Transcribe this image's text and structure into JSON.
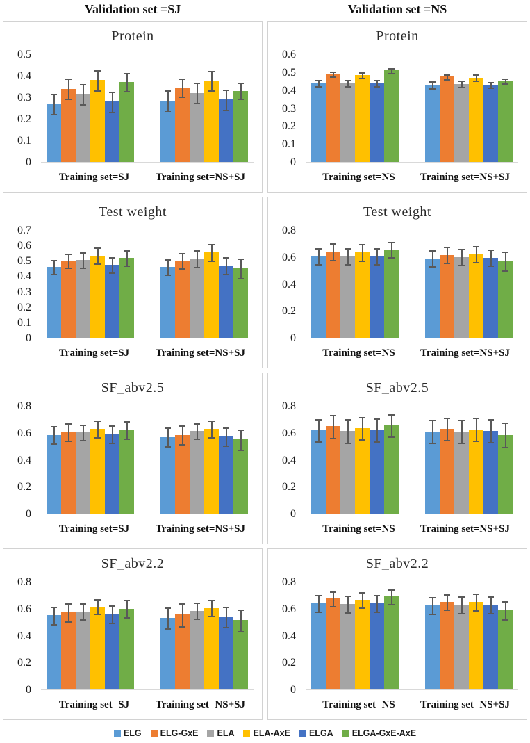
{
  "header": {
    "columns": [
      "Validation set =SJ",
      "Validation set =NS"
    ]
  },
  "legend": {
    "items": [
      {
        "label": "ELG",
        "color": "#5B9BD5"
      },
      {
        "label": "ELG-GxE",
        "color": "#ED7D31"
      },
      {
        "label": "ELA",
        "color": "#A5A5A5"
      },
      {
        "label": "ELA-AxE",
        "color": "#FFC000"
      },
      {
        "label": "ELGA",
        "color": "#4472C4"
      },
      {
        "label": "ELGA-GxE-AxE",
        "color": "#70AD47"
      }
    ]
  },
  "error_bar_color": "#595959",
  "chart_data": [
    {
      "type": "bar",
      "title": "Protein",
      "validation_set": "SJ",
      "ymax": 0.5,
      "yticks": [
        0,
        0.1,
        0.2,
        0.3,
        0.4,
        0.5
      ],
      "grid": false,
      "series_names": [
        "ELG",
        "ELG-GxE",
        "ELA",
        "ELA-AxE",
        "ELGA",
        "ELGA-GxE-AxE"
      ],
      "groups": [
        {
          "label": "Training set=SJ",
          "values": [
            0.27,
            0.34,
            0.315,
            0.38,
            0.28,
            0.37
          ],
          "errors": [
            0.05,
            0.05,
            0.05,
            0.05,
            0.05,
            0.045
          ]
        },
        {
          "label": "Training set=NS+SJ",
          "values": [
            0.285,
            0.345,
            0.32,
            0.378,
            0.29,
            0.33
          ],
          "errors": [
            0.05,
            0.045,
            0.05,
            0.048,
            0.05,
            0.04
          ]
        }
      ]
    },
    {
      "type": "bar",
      "title": "Protein",
      "validation_set": "NS",
      "ymax": 0.6,
      "yticks": [
        0,
        0.1,
        0.2,
        0.3,
        0.4,
        0.5,
        0.6
      ],
      "grid": false,
      "series_names": [
        "ELG",
        "ELG-GxE",
        "ELA",
        "ELA-AxE",
        "ELGA",
        "ELGA-GxE-AxE"
      ],
      "groups": [
        {
          "label": "Training set=NS",
          "values": [
            0.44,
            0.49,
            0.44,
            0.485,
            0.44,
            0.51
          ],
          "errors": [
            0.022,
            0.018,
            0.022,
            0.02,
            0.022,
            0.018
          ]
        },
        {
          "label": "Training set=NS+SJ",
          "values": [
            0.43,
            0.475,
            0.435,
            0.47,
            0.43,
            0.45
          ],
          "errors": [
            0.022,
            0.018,
            0.022,
            0.02,
            0.02,
            0.018
          ]
        }
      ]
    },
    {
      "type": "bar",
      "title": "Test weight",
      "validation_set": "SJ",
      "ymax": 0.7,
      "yticks": [
        0,
        0.1,
        0.2,
        0.3,
        0.4,
        0.5,
        0.6,
        0.7
      ],
      "grid": false,
      "series_names": [
        "ELG",
        "ELG-GxE",
        "ELA",
        "ELA-AxE",
        "ELGA",
        "ELGA-GxE-AxE"
      ],
      "groups": [
        {
          "label": "Training set=SJ",
          "values": [
            0.46,
            0.5,
            0.505,
            0.535,
            0.475,
            0.52
          ],
          "errors": [
            0.05,
            0.05,
            0.055,
            0.055,
            0.055,
            0.055
          ]
        },
        {
          "label": "Training set=NS+SJ",
          "values": [
            0.46,
            0.5,
            0.515,
            0.555,
            0.47,
            0.45
          ],
          "errors": [
            0.055,
            0.055,
            0.06,
            0.058,
            0.06,
            0.068
          ]
        }
      ]
    },
    {
      "type": "bar",
      "title": "Test weight",
      "validation_set": "NS",
      "ymax": 0.8,
      "yticks": [
        0,
        0.2,
        0.4,
        0.6,
        0.8
      ],
      "grid": false,
      "series_names": [
        "ELG",
        "ELG-GxE",
        "ELA",
        "ELA-AxE",
        "ELGA",
        "ELGA-GxE-AxE"
      ],
      "groups": [
        {
          "label": "Training set=NS",
          "values": [
            0.605,
            0.64,
            0.605,
            0.635,
            0.605,
            0.655
          ],
          "errors": [
            0.065,
            0.065,
            0.065,
            0.066,
            0.065,
            0.062
          ]
        },
        {
          "label": "Training set=NS+SJ",
          "values": [
            0.59,
            0.615,
            0.6,
            0.62,
            0.595,
            0.57
          ],
          "errors": [
            0.065,
            0.065,
            0.065,
            0.065,
            0.065,
            0.075
          ]
        }
      ]
    },
    {
      "type": "bar",
      "title": "SF_abv2.5",
      "validation_set": "SJ",
      "ymax": 0.8,
      "yticks": [
        0,
        0.2,
        0.4,
        0.6,
        0.8
      ],
      "grid": false,
      "series_names": [
        "ELG",
        "ELG-GxE",
        "ELA",
        "ELA-AxE",
        "ELGA",
        "ELGA-GxE-AxE"
      ],
      "groups": [
        {
          "label": "Training set=SJ",
          "values": [
            0.585,
            0.605,
            0.605,
            0.63,
            0.59,
            0.62
          ],
          "errors": [
            0.07,
            0.07,
            0.062,
            0.065,
            0.07,
            0.07
          ]
        },
        {
          "label": "Training set=NS+SJ",
          "values": [
            0.57,
            0.585,
            0.615,
            0.63,
            0.575,
            0.55
          ],
          "errors": [
            0.075,
            0.075,
            0.062,
            0.065,
            0.072,
            0.078
          ]
        }
      ]
    },
    {
      "type": "bar",
      "title": "SF_abv2.5",
      "validation_set": "NS",
      "ymax": 0.8,
      "yticks": [
        0,
        0.2,
        0.4,
        0.6,
        0.8
      ],
      "grid": false,
      "series_names": [
        "ELG",
        "ELG-GxE",
        "ELA",
        "ELA-AxE",
        "ELGA",
        "ELGA-GxE-AxE"
      ],
      "groups": [
        {
          "label": "Training set=NS",
          "values": [
            0.62,
            0.65,
            0.615,
            0.635,
            0.62,
            0.655
          ],
          "errors": [
            0.088,
            0.09,
            0.092,
            0.09,
            0.09,
            0.088
          ]
        },
        {
          "label": "Training set=NS+SJ",
          "values": [
            0.61,
            0.63,
            0.61,
            0.625,
            0.615,
            0.585
          ],
          "errors": [
            0.09,
            0.09,
            0.09,
            0.09,
            0.09,
            0.095
          ]
        }
      ]
    },
    {
      "type": "bar",
      "title": "SF_abv2.2",
      "validation_set": "SJ",
      "ymax": 0.8,
      "yticks": [
        0,
        0.2,
        0.4,
        0.6,
        0.8
      ],
      "grid": false,
      "series_names": [
        "ELG",
        "ELG-GxE",
        "ELA",
        "ELA-AxE",
        "ELGA",
        "ELGA-GxE-AxE"
      ],
      "groups": [
        {
          "label": "Training set=SJ",
          "values": [
            0.55,
            0.575,
            0.58,
            0.615,
            0.56,
            0.6
          ],
          "errors": [
            0.07,
            0.072,
            0.065,
            0.06,
            0.07,
            0.07
          ]
        },
        {
          "label": "Training set=NS+SJ",
          "values": [
            0.53,
            0.555,
            0.585,
            0.605,
            0.54,
            0.515
          ],
          "errors": [
            0.082,
            0.088,
            0.065,
            0.065,
            0.08,
            0.085
          ]
        }
      ]
    },
    {
      "type": "bar",
      "title": "SF_abv2.2",
      "validation_set": "NS",
      "ymax": 0.8,
      "yticks": [
        0,
        0.2,
        0.4,
        0.6,
        0.8
      ],
      "grid": false,
      "series_names": [
        "ELG",
        "ELG-GxE",
        "ELA",
        "ELA-AxE",
        "ELGA",
        "ELGA-GxE-AxE"
      ],
      "groups": [
        {
          "label": "Training set=NS",
          "values": [
            0.64,
            0.675,
            0.635,
            0.665,
            0.64,
            0.69
          ],
          "errors": [
            0.065,
            0.06,
            0.065,
            0.062,
            0.065,
            0.06
          ]
        },
        {
          "label": "Training set=NS+SJ",
          "values": [
            0.625,
            0.65,
            0.63,
            0.65,
            0.63,
            0.59
          ],
          "errors": [
            0.065,
            0.062,
            0.065,
            0.065,
            0.065,
            0.072
          ]
        }
      ]
    }
  ]
}
